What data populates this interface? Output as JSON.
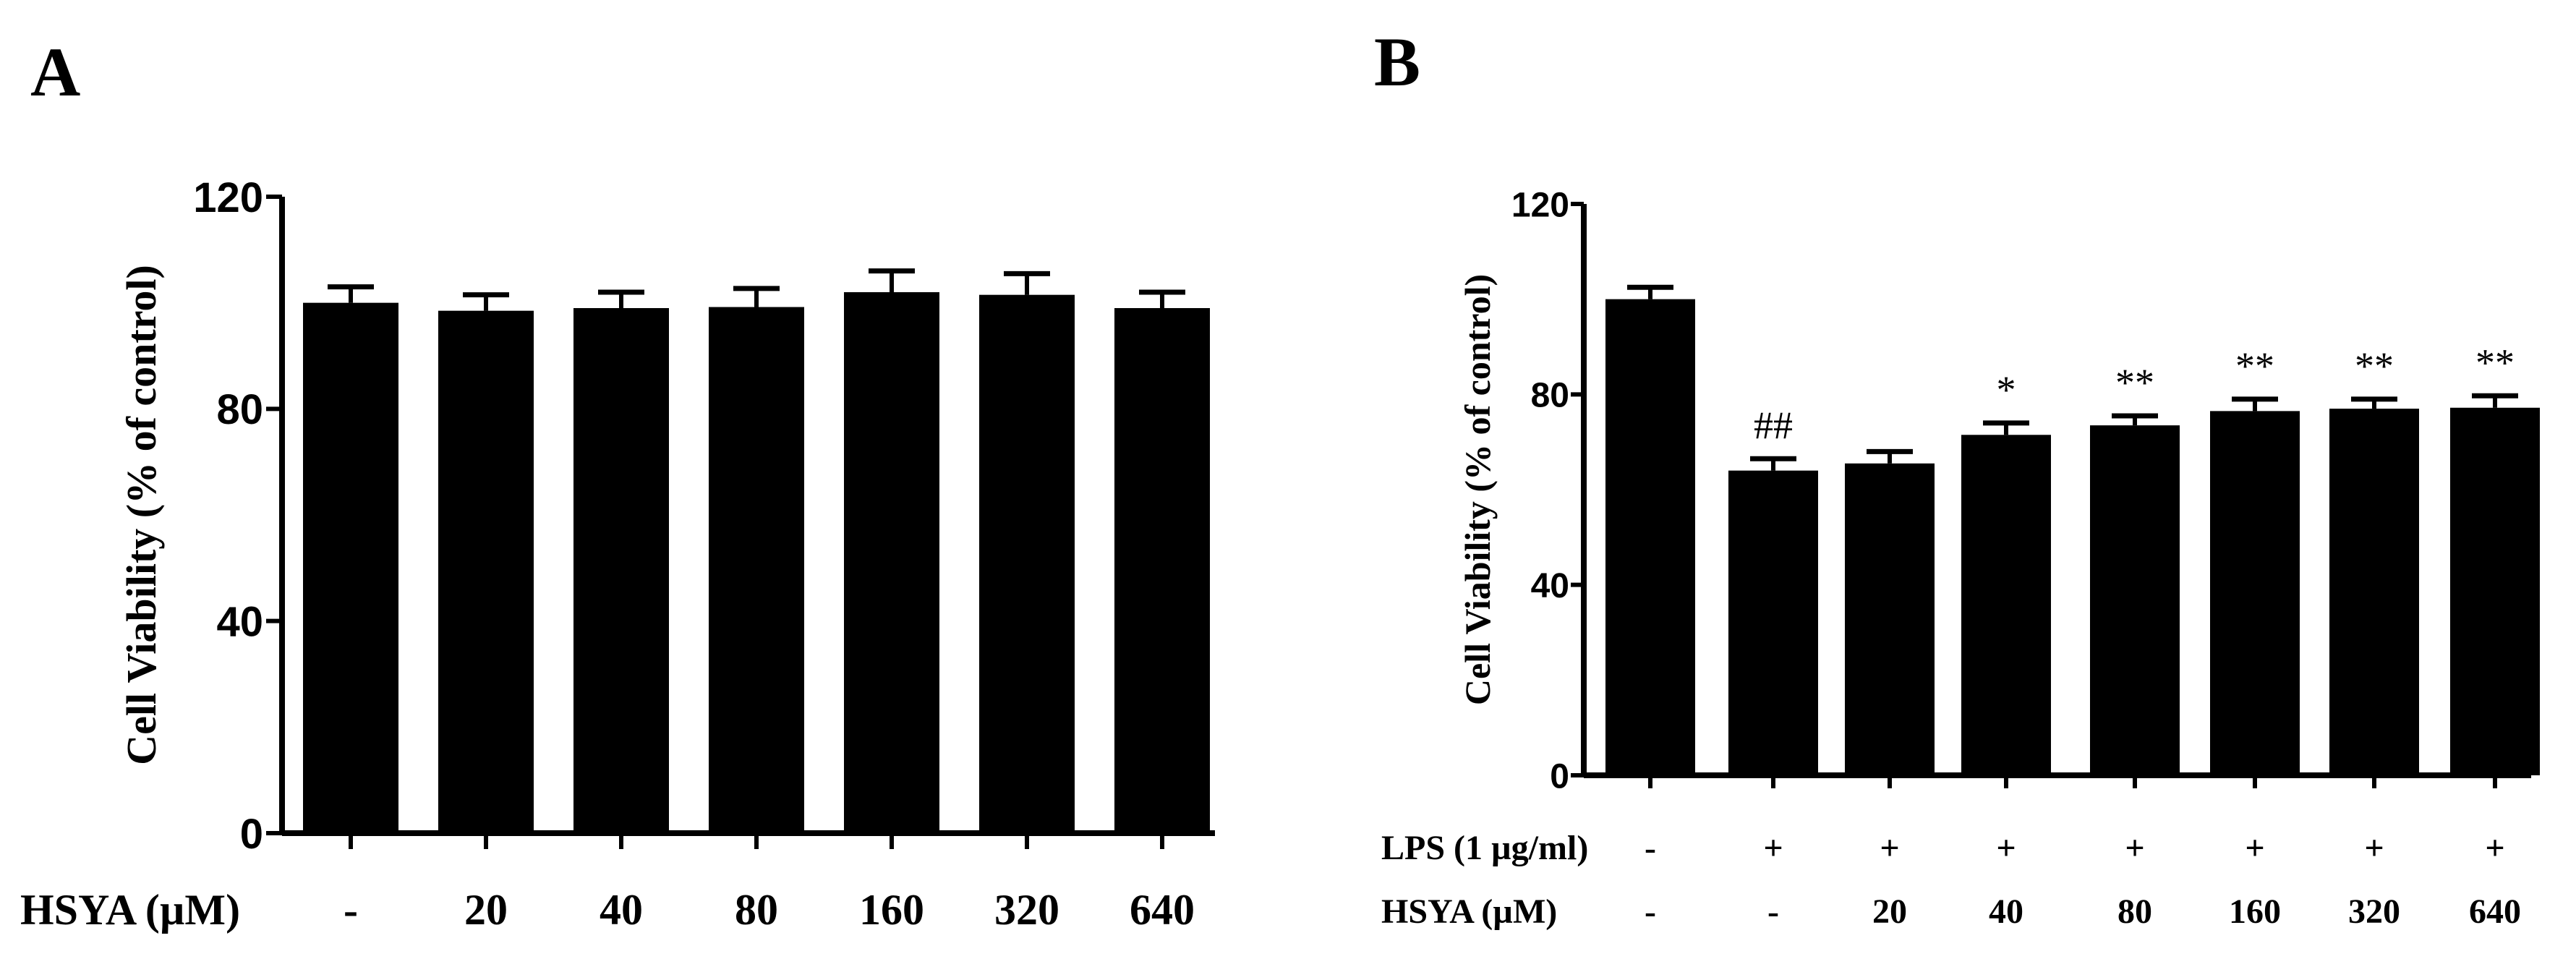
{
  "chart_data": [
    {
      "type": "bar",
      "panel": "A",
      "ylabel": "Cell Viability (% of control)",
      "ylim": [
        0,
        120
      ],
      "yticks": [
        "0",
        "40",
        "80",
        "120"
      ],
      "tick_values": [
        0,
        40,
        80,
        120
      ],
      "treatment_rows": [
        {
          "label": "HSYA (µM)",
          "values": [
            "-",
            "20",
            "40",
            "80",
            "160",
            "320",
            "640"
          ]
        }
      ],
      "values": [
        100,
        98.5,
        99,
        99.2,
        102,
        101.5,
        99
      ],
      "errors": [
        3,
        3,
        3,
        3.5,
        4,
        4,
        3
      ],
      "annotations": [
        "",
        "",
        "",
        "",
        "",
        "",
        ""
      ]
    },
    {
      "type": "bar",
      "panel": "B",
      "ylabel": "Cell Viability (% of control)",
      "ylim": [
        0,
        120
      ],
      "yticks": [
        "0",
        "40",
        "80",
        "120"
      ],
      "tick_values": [
        0,
        40,
        80,
        120
      ],
      "treatment_rows": [
        {
          "label": "LPS (1 µg/ml)",
          "values": [
            "-",
            "+",
            "+",
            "+",
            "+",
            "+",
            "+",
            "+"
          ]
        },
        {
          "label": "HSYA (µM)",
          "values": [
            "-",
            "-",
            "20",
            "40",
            "80",
            "160",
            "320",
            "640"
          ]
        }
      ],
      "values": [
        100,
        64,
        65.5,
        71.5,
        73.5,
        76.5,
        77,
        77.2
      ],
      "errors": [
        2.5,
        2.5,
        2.5,
        2.5,
        2,
        2.5,
        2,
        2.5
      ],
      "annotations": [
        "",
        "##",
        "",
        "*",
        "**",
        "**",
        "**",
        "**"
      ]
    }
  ]
}
